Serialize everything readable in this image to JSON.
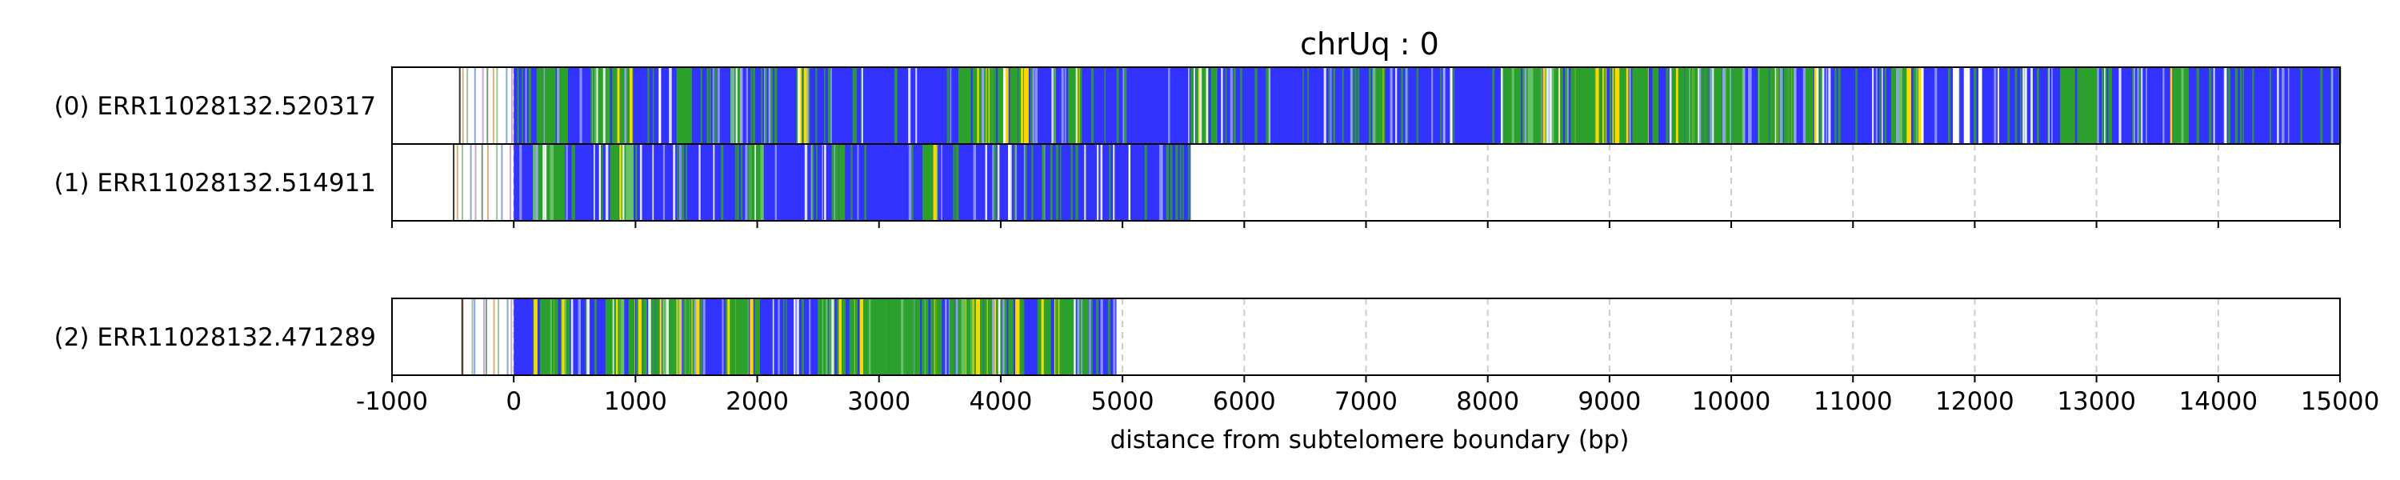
{
  "chart_data": {
    "type": "bar",
    "title": "chrUq : 0",
    "xlabel": "distance from subtelomere boundary (bp)",
    "xlim": [
      -1000,
      15000
    ],
    "xticks": [
      -1000,
      0,
      1000,
      2000,
      3000,
      4000,
      5000,
      6000,
      7000,
      8000,
      9000,
      10000,
      11000,
      12000,
      13000,
      14000,
      15000
    ],
    "xtick_labels": [
      "-1000",
      "0",
      "1000",
      "2000",
      "3000",
      "4000",
      "5000",
      "6000",
      "7000",
      "8000",
      "9000",
      "10000",
      "11000",
      "12000",
      "13000",
      "14000",
      "15000"
    ],
    "grid": "vertical dashed at major ticks",
    "colors": {
      "telomere_repeat": "#3333ff",
      "variant_repeat": "#2ca02c",
      "other": "#ffd700",
      "background": "#ffffff",
      "grid": "#cccccc"
    },
    "reads": [
      {
        "label": "(0) ERR11028132.520317",
        "start": -450,
        "blue_start": 0,
        "end": 15000,
        "green_regions": [
          [
            120,
            420
          ],
          [
            630,
            1000
          ],
          [
            1300,
            1450
          ],
          [
            1750,
            1850
          ],
          [
            2300,
            2400
          ],
          [
            3650,
            4200
          ],
          [
            4550,
            4650
          ],
          [
            5600,
            5750
          ],
          [
            7050,
            7150
          ],
          [
            8100,
            8950
          ],
          [
            9000,
            9400
          ],
          [
            9500,
            10100
          ],
          [
            10200,
            10500
          ],
          [
            10600,
            10750
          ],
          [
            11300,
            11550
          ],
          [
            12700,
            13000
          ],
          [
            13600,
            13750
          ]
        ],
        "white_gaps": [
          [
            1190,
            1210
          ],
          [
            4020,
            4040
          ],
          [
            7690,
            7710
          ],
          [
            10700,
            10715
          ],
          [
            11560,
            11580
          ],
          [
            11820,
            11870
          ],
          [
            11910,
            11960
          ],
          [
            12030,
            12060
          ],
          [
            14050,
            14070
          ]
        ]
      },
      {
        "label": "(1) ERR11028132.514911",
        "start": -500,
        "blue_start": 0,
        "end": 5560,
        "green_regions": [
          [
            150,
            420
          ],
          [
            780,
            1000
          ],
          [
            1950,
            2050
          ],
          [
            2600,
            2700
          ],
          [
            3350,
            3450
          ]
        ],
        "white_gaps": [
          [
            250,
            265
          ],
          [
            700,
            715
          ],
          [
            2550,
            2565
          ],
          [
            4060,
            4075
          ],
          [
            5050,
            5065
          ]
        ]
      },
      {
        "label": "(2) ERR11028132.471289",
        "start": -430,
        "blue_start": 0,
        "end": 4950,
        "green_regions": [
          [
            130,
            450
          ],
          [
            750,
            1500
          ],
          [
            1700,
            2000
          ],
          [
            2500,
            3500
          ],
          [
            3550,
            4200
          ],
          [
            4300,
            4700
          ]
        ],
        "white_gaps": [
          [
            2300,
            2315
          ],
          [
            3980,
            3995
          ],
          [
            4600,
            4615
          ]
        ]
      }
    ]
  }
}
